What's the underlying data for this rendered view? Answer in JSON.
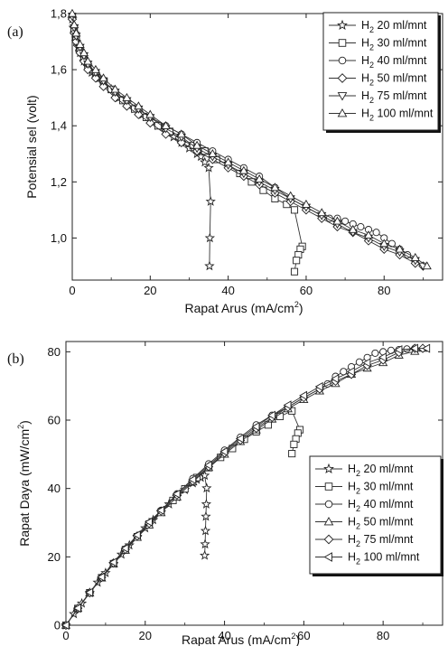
{
  "chart_data": [
    {
      "panel": "(a)",
      "type": "line",
      "xlabel": "Rapat Arus (mA/cm²)",
      "ylabel": "Potensial sel (volt)",
      "xlim": [
        0,
        95
      ],
      "ylim": [
        0.85,
        1.8
      ],
      "xticks": [
        "0",
        "20",
        "40",
        "60",
        "80"
      ],
      "yticks": [
        "1,0",
        "1,2",
        "1,4",
        "1,6",
        "1,8"
      ],
      "legend_position": "top-right",
      "series": [
        {
          "name": "H2 20 ml/mnt",
          "marker": "star",
          "x": [
            0,
            0.3,
            0.6,
            1,
            1.5,
            2,
            3,
            4,
            5,
            6,
            7,
            8,
            10,
            12,
            14,
            16,
            18,
            20,
            22,
            24,
            26,
            28,
            30,
            32,
            33,
            34,
            35,
            35.5,
            35.3,
            35.2
          ],
          "y": [
            1.78,
            1.75,
            1.73,
            1.7,
            1.68,
            1.66,
            1.63,
            1.61,
            1.59,
            1.58,
            1.57,
            1.56,
            1.53,
            1.5,
            1.48,
            1.46,
            1.44,
            1.42,
            1.4,
            1.38,
            1.36,
            1.34,
            1.32,
            1.3,
            1.29,
            1.27,
            1.25,
            1.13,
            1.0,
            0.9
          ]
        },
        {
          "name": "H2 30 ml/mnt",
          "marker": "square",
          "x": [
            0,
            0.5,
            1,
            2,
            3,
            4,
            6,
            8,
            10,
            13,
            16,
            19,
            22,
            25,
            28,
            31,
            34,
            37,
            40,
            43,
            46,
            49,
            52,
            55,
            57,
            59,
            58.5,
            58,
            57.5,
            57
          ],
          "y": [
            1.79,
            1.74,
            1.71,
            1.67,
            1.64,
            1.61,
            1.58,
            1.56,
            1.53,
            1.49,
            1.46,
            1.43,
            1.4,
            1.38,
            1.35,
            1.33,
            1.31,
            1.28,
            1.26,
            1.23,
            1.2,
            1.17,
            1.14,
            1.12,
            1.1,
            0.97,
            0.96,
            0.94,
            0.92,
            0.88
          ]
        },
        {
          "name": "H2 40 ml/mnt",
          "marker": "circle",
          "x": [
            0,
            0.5,
            1,
            2,
            3,
            4,
            6,
            8,
            11,
            14,
            17,
            20,
            24,
            28,
            32,
            36,
            40,
            44,
            48,
            52,
            56,
            60,
            64,
            66,
            68,
            70,
            72,
            74,
            76,
            78,
            80,
            82,
            84,
            86,
            88
          ],
          "y": [
            1.79,
            1.74,
            1.71,
            1.67,
            1.64,
            1.62,
            1.59,
            1.56,
            1.52,
            1.49,
            1.46,
            1.43,
            1.4,
            1.37,
            1.34,
            1.31,
            1.28,
            1.25,
            1.22,
            1.18,
            1.14,
            1.11,
            1.08,
            1.07,
            1.07,
            1.06,
            1.05,
            1.04,
            1.03,
            1.02,
            1.0,
            0.98,
            0.96,
            0.94,
            0.92
          ]
        },
        {
          "name": "H2 50 ml/mnt",
          "marker": "diamond",
          "x": [
            0,
            0.5,
            1,
            2,
            3,
            4,
            6,
            8,
            11,
            14,
            17,
            20,
            24,
            28,
            32,
            36,
            40,
            44,
            48,
            52,
            56,
            60,
            64,
            68,
            72,
            76,
            80,
            84,
            88,
            90
          ],
          "y": [
            1.78,
            1.73,
            1.7,
            1.66,
            1.63,
            1.6,
            1.57,
            1.54,
            1.5,
            1.47,
            1.44,
            1.41,
            1.37,
            1.34,
            1.31,
            1.28,
            1.25,
            1.22,
            1.19,
            1.16,
            1.13,
            1.1,
            1.07,
            1.04,
            1.02,
            0.99,
            0.96,
            0.94,
            0.91,
            0.9
          ]
        },
        {
          "name": "H2 75 ml/mnt",
          "marker": "triangle-down",
          "x": [
            0,
            0.5,
            1,
            2,
            3,
            4,
            6,
            8,
            11,
            14,
            17,
            20,
            24,
            28,
            32,
            36,
            40,
            44,
            48,
            52,
            56,
            60,
            64,
            68,
            72,
            76,
            80,
            84,
            88,
            90
          ],
          "y": [
            1.79,
            1.75,
            1.72,
            1.68,
            1.65,
            1.62,
            1.59,
            1.56,
            1.52,
            1.49,
            1.46,
            1.43,
            1.39,
            1.36,
            1.32,
            1.29,
            1.26,
            1.23,
            1.2,
            1.17,
            1.14,
            1.11,
            1.08,
            1.05,
            1.02,
            1.0,
            0.97,
            0.95,
            0.92,
            0.9
          ]
        },
        {
          "name": "H2 100 ml/mnt",
          "marker": "triangle-up",
          "x": [
            0,
            0.5,
            1,
            2,
            3,
            4,
            6,
            8,
            11,
            14,
            17,
            20,
            24,
            28,
            32,
            36,
            40,
            44,
            48,
            52,
            56,
            60,
            64,
            68,
            72,
            76,
            80,
            84,
            88,
            91
          ],
          "y": [
            1.8,
            1.76,
            1.73,
            1.69,
            1.66,
            1.63,
            1.6,
            1.57,
            1.53,
            1.5,
            1.47,
            1.44,
            1.4,
            1.37,
            1.33,
            1.3,
            1.27,
            1.24,
            1.21,
            1.18,
            1.15,
            1.12,
            1.09,
            1.06,
            1.03,
            1.01,
            0.98,
            0.96,
            0.93,
            0.9
          ]
        }
      ]
    },
    {
      "panel": "(b)",
      "type": "line",
      "xlabel": "Rapat Arus (mA/cm²)",
      "ylabel": "Rapat Daya (mW/cm²)",
      "xlim": [
        0,
        95
      ],
      "ylim": [
        0,
        83
      ],
      "xticks": [
        "0",
        "20",
        "40",
        "60",
        "80"
      ],
      "yticks": [
        "0",
        "20",
        "40",
        "60",
        "80"
      ],
      "legend_position": "lower-right",
      "series": [
        {
          "name": "H2 20 ml/mnt",
          "marker": "star",
          "x": [
            0,
            2,
            4,
            6,
            8,
            10,
            12,
            14,
            16,
            18,
            20,
            22,
            24,
            26,
            28,
            30,
            32,
            33,
            34,
            35,
            35.5,
            35.4,
            35.3,
            35.2,
            35.1,
            35.0
          ],
          "y": [
            0,
            3.3,
            6.4,
            9.5,
            12.5,
            15.3,
            18.0,
            20.7,
            23.4,
            25.9,
            28.4,
            30.8,
            33.1,
            35.4,
            37.5,
            39.6,
            41.6,
            42.6,
            43.2,
            43.8,
            40.1,
            35.4,
            31.8,
            27.6,
            23.7,
            20.4
          ]
        },
        {
          "name": "H2 30 ml/mnt",
          "marker": "square",
          "x": [
            0,
            3,
            6,
            9,
            12,
            15,
            18,
            21,
            24,
            27,
            30,
            33,
            36,
            39,
            42,
            45,
            48,
            51,
            54,
            57,
            59,
            58.5,
            58,
            57.5,
            57
          ],
          "y": [
            0,
            4.9,
            9.5,
            13.9,
            18.0,
            22.1,
            25.9,
            29.6,
            33.1,
            36.5,
            39.9,
            43.2,
            46.1,
            49.1,
            51.7,
            54.4,
            56.6,
            58.6,
            61.1,
            62.7,
            57.2,
            56.2,
            54.5,
            52.9,
            50.2
          ]
        },
        {
          "name": "H2 40 ml/mnt",
          "marker": "circle",
          "x": [
            0,
            3,
            6,
            9,
            12,
            15,
            18,
            21,
            24,
            28,
            32,
            36,
            40,
            44,
            48,
            52,
            56,
            60,
            64,
            66,
            68,
            70,
            72,
            74,
            76,
            78,
            80,
            82,
            84,
            86,
            88
          ],
          "y": [
            0,
            4.9,
            9.5,
            13.9,
            18.2,
            22.3,
            26.1,
            29.8,
            33.6,
            38.4,
            42.9,
            47.2,
            51.2,
            55.0,
            58.6,
            61.4,
            63.8,
            66.6,
            69.1,
            70.6,
            72.8,
            74.2,
            75.6,
            77.0,
            78.3,
            79.6,
            80.0,
            80.4,
            80.6,
            80.8,
            81.0
          ]
        },
        {
          "name": "H2 50 ml/mnt",
          "marker": "triangle-up",
          "x": [
            0,
            3,
            6,
            9,
            12,
            15,
            18,
            21,
            24,
            28,
            32,
            36,
            40,
            44,
            48,
            52,
            56,
            60,
            64,
            68,
            72,
            76,
            80,
            84,
            88,
            90
          ],
          "y": [
            0,
            4.9,
            9.4,
            13.8,
            17.9,
            21.9,
            25.7,
            29.3,
            32.9,
            37.5,
            41.9,
            46.1,
            50.0,
            53.7,
            57.1,
            60.3,
            63.3,
            66.0,
            68.5,
            70.7,
            73.4,
            75.2,
            76.8,
            79.0,
            80.1,
            81.0
          ]
        },
        {
          "name": "H2 75 ml/mnt",
          "marker": "diamond",
          "x": [
            0,
            3,
            6,
            9,
            12,
            15,
            18,
            21,
            24,
            28,
            32,
            36,
            40,
            44,
            48,
            52,
            56,
            60,
            64,
            68,
            72,
            76,
            80,
            84,
            88,
            90
          ],
          "y": [
            0,
            5.0,
            9.5,
            14.0,
            18.2,
            22.2,
            26.1,
            29.8,
            33.4,
            38.1,
            42.2,
            46.4,
            50.4,
            54.1,
            57.6,
            60.8,
            63.8,
            66.6,
            69.1,
            71.4,
            73.4,
            76.0,
            77.6,
            79.8,
            81.0,
            81.0
          ]
        },
        {
          "name": "H2 100 ml/mnt",
          "marker": "triangle-left",
          "x": [
            0,
            3,
            6,
            9,
            12,
            15,
            18,
            21,
            24,
            28,
            32,
            36,
            40,
            44,
            48,
            52,
            56,
            60,
            64,
            68,
            72,
            76,
            80,
            84,
            88,
            91
          ],
          "y": [
            0,
            5.0,
            9.6,
            14.1,
            18.4,
            22.5,
            26.4,
            30.2,
            33.6,
            38.4,
            42.6,
            46.8,
            50.8,
            54.6,
            58.1,
            61.4,
            64.4,
            67.2,
            69.8,
            72.1,
            74.2,
            76.8,
            78.4,
            80.6,
            81.0,
            81.0
          ]
        }
      ]
    }
  ]
}
